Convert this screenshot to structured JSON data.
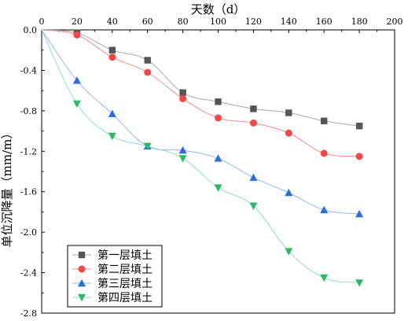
{
  "chart_data": {
    "type": "line",
    "title": "",
    "xlabel": "天数（d）",
    "ylabel": "单位沉降量（mm/m）",
    "x_axis_position": "top",
    "xlim": [
      0,
      200
    ],
    "ylim": [
      -2.8,
      0.0
    ],
    "x_ticks": [
      0,
      20,
      40,
      60,
      80,
      100,
      120,
      140,
      160,
      180,
      200
    ],
    "y_ticks": [
      0.0,
      -0.4,
      -0.8,
      -1.2,
      -1.6,
      -2.0,
      -2.4,
      -2.8
    ],
    "x_tick_labels": [
      "0",
      "20",
      "40",
      "60",
      "80",
      "100",
      "120",
      "140",
      "160",
      "180",
      "200"
    ],
    "y_tick_labels": [
      "0.0",
      "-0.4",
      "-0.8",
      "-1.2",
      "-1.6",
      "-2.0",
      "-2.4",
      "-2.8"
    ],
    "grid": false,
    "legend_position": "bottom-left",
    "x": [
      0,
      20,
      40,
      60,
      80,
      100,
      120,
      140,
      160,
      180
    ],
    "series": [
      {
        "name": "第一层填土",
        "marker": "square",
        "color": "#555555",
        "line_color": "#a8a8a8",
        "values": [
          0,
          -0.03,
          -0.2,
          -0.3,
          -0.62,
          -0.71,
          -0.78,
          -0.82,
          -0.9,
          -0.95
        ]
      },
      {
        "name": "第二层填土",
        "marker": "circle",
        "color": "#f04848",
        "line_color": "#f08c8c",
        "values": [
          0,
          -0.05,
          -0.27,
          -0.42,
          -0.68,
          -0.87,
          -0.92,
          -1.02,
          -1.22,
          -1.25
        ]
      },
      {
        "name": "第三层填土",
        "marker": "triangle-up",
        "color": "#2a6ee0",
        "line_color": "#96b6ee",
        "values": [
          0,
          -0.5,
          -0.83,
          -1.15,
          -1.19,
          -1.27,
          -1.46,
          -1.61,
          -1.78,
          -1.82
        ]
      },
      {
        "name": "第四层填土",
        "marker": "triangle-down",
        "color": "#2fb86a",
        "line_color": "#8fd9d0",
        "values": [
          0,
          -0.73,
          -1.05,
          -1.15,
          -1.27,
          -1.56,
          -1.74,
          -2.19,
          -2.45,
          -2.5
        ]
      }
    ]
  }
}
